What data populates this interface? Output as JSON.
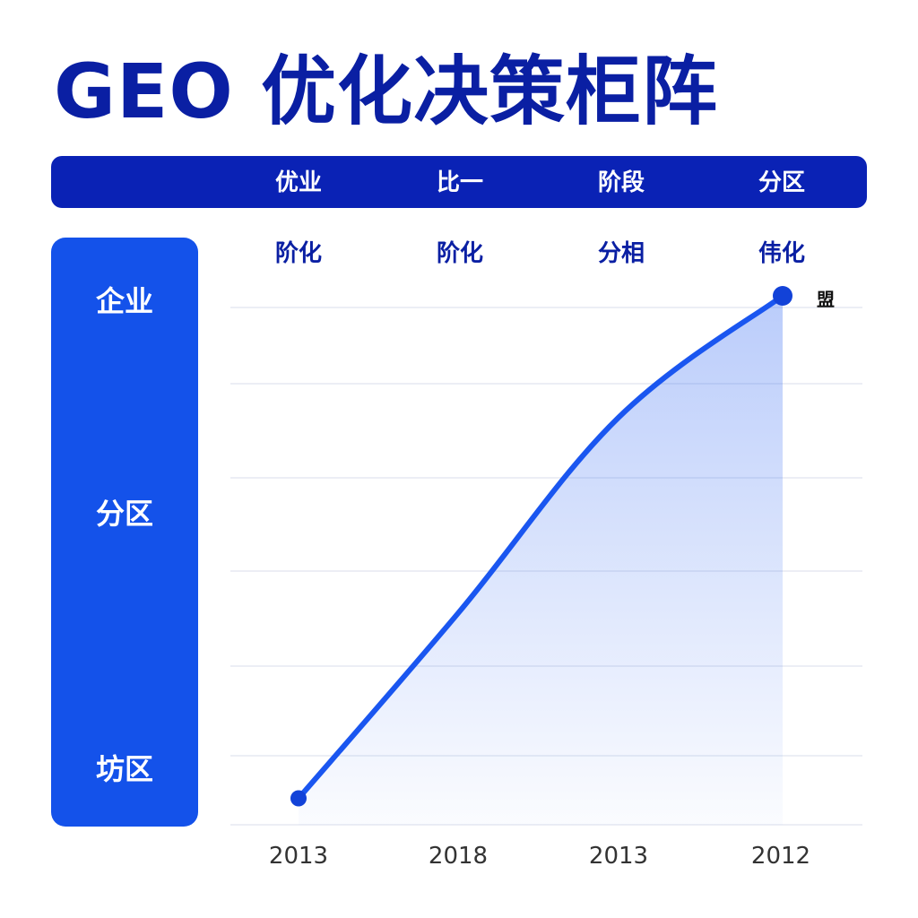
{
  "title": "GEO 优化决策柜阵",
  "header": {
    "labels": [
      "优业",
      "比一",
      "阶段",
      "分区"
    ]
  },
  "stage_labels": [
    "阶化",
    "阶化",
    "分相",
    "伟化"
  ],
  "side_labels": [
    "企业",
    "分区",
    "坊区"
  ],
  "end_label": "盟",
  "colors": {
    "title": "#0a1fa3",
    "header_bar": "#0a22b5",
    "side_panel": "#1452ea",
    "line": "#1a56f0",
    "point": "#1242d8"
  },
  "chart_data": {
    "type": "area",
    "categories": [
      "2013",
      "2018",
      "2013",
      "2012"
    ],
    "values": [
      5,
      40,
      77,
      100
    ],
    "ylim": [
      0,
      100
    ],
    "grid": true,
    "markers": "endpoints"
  }
}
